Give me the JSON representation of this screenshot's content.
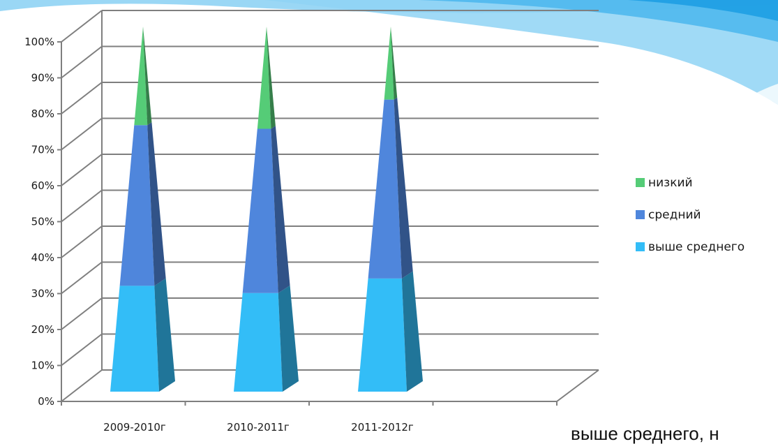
{
  "chart_data": {
    "type": "bar",
    "subtype": "stacked-100-3d-pyramid",
    "categories": [
      "2009-2010г",
      "2010-2011г",
      "2011-2012г"
    ],
    "series": [
      {
        "name": "выше среднего",
        "values": [
          29,
          27,
          31
        ],
        "color": "#33bdf7"
      },
      {
        "name": "средний",
        "values": [
          44,
          45,
          49
        ],
        "color": "#4f86dc"
      },
      {
        "name": "низкий",
        "values": [
          27,
          28,
          20
        ],
        "color": "#55cc77"
      }
    ],
    "yticks": [
      "0%",
      "10%",
      "20%",
      "30%",
      "40%",
      "50%",
      "60%",
      "70%",
      "80%",
      "90%",
      "100%"
    ],
    "ylim": [
      0,
      100
    ],
    "grid": true,
    "legend_position": "right"
  },
  "decor": {
    "top_band_colors": [
      "#8fd3f4",
      "#4fb8ee",
      "#1e9ee3"
    ]
  },
  "caption": {
    "text": "выше среднего, н"
  }
}
